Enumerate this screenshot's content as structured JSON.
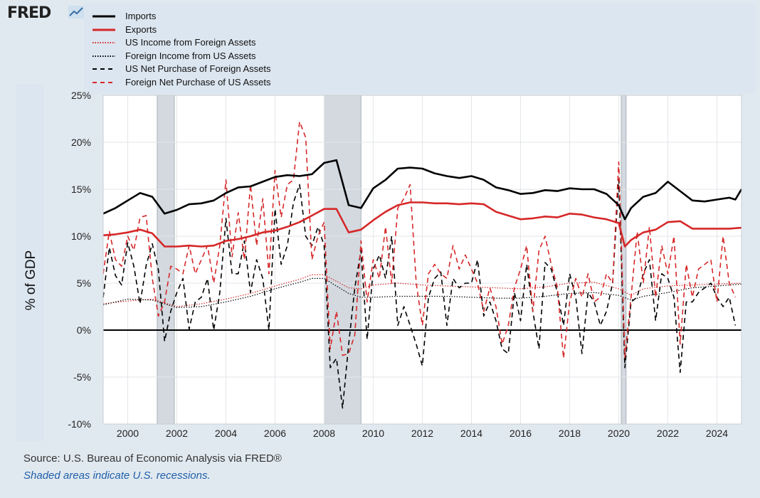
{
  "brand": {
    "logo_text": "FRED",
    "logo_icon": "fred-chart-logo-icon"
  },
  "legend": [
    {
      "label": "Imports",
      "color": "#000000",
      "style": "solid-thick"
    },
    {
      "label": "Exports",
      "color": "#d62728",
      "style": "solid-thick"
    },
    {
      "label": "US Income from Foreign Assets",
      "color": "#d62728",
      "style": "dotted"
    },
    {
      "label": "Foreign Income from US Assets",
      "color": "#000000",
      "style": "dotted"
    },
    {
      "label": "US Net Purchase of Foreign Assets",
      "color": "#000000",
      "style": "dashed"
    },
    {
      "label": "Foreign Net Purchase of US Assets",
      "color": "#d62728",
      "style": "dashed"
    }
  ],
  "footer": {
    "source": "Source: U.S. Bureau of Economic Analysis via FRED®",
    "note": "Shaded areas indicate U.S. recessions."
  },
  "chart_data": {
    "type": "line",
    "title": "",
    "ylabel": "% of GDP",
    "xlabel": "",
    "xlim": [
      1999.0,
      2025.0
    ],
    "ylim": [
      -10,
      25
    ],
    "x_ticks": [
      "2000",
      "2002",
      "2004",
      "2006",
      "2008",
      "2010",
      "2012",
      "2014",
      "2016",
      "2018",
      "2020",
      "2022",
      "2024"
    ],
    "y_ticks": [
      "25%",
      "20%",
      "15%",
      "10%",
      "5%",
      "0%",
      "-5%",
      "-10%"
    ],
    "grid": true,
    "zero_line": true,
    "recessions": [
      [
        2001.2,
        2001.9
      ],
      [
        2008.0,
        2009.5
      ],
      [
        2020.1,
        2020.3
      ]
    ],
    "series": [
      {
        "name": "Imports",
        "color": "#000000",
        "style": "solid-thick",
        "x": [
          1999.0,
          1999.5,
          2000.0,
          2000.5,
          2001.0,
          2001.5,
          2002.0,
          2002.5,
          2003.0,
          2003.5,
          2004.0,
          2004.5,
          2005.0,
          2005.5,
          2006.0,
          2006.5,
          2007.0,
          2007.5,
          2008.0,
          2008.5,
          2009.0,
          2009.5,
          2010.0,
          2010.5,
          2011.0,
          2011.5,
          2012.0,
          2012.5,
          2013.0,
          2013.5,
          2014.0,
          2014.5,
          2015.0,
          2015.5,
          2016.0,
          2016.5,
          2017.0,
          2017.5,
          2018.0,
          2018.5,
          2019.0,
          2019.5,
          2020.0,
          2020.25,
          2020.5,
          2021.0,
          2021.5,
          2022.0,
          2022.5,
          2023.0,
          2023.5,
          2024.0,
          2024.5,
          2024.75,
          2025.0
        ],
        "values": [
          12.4,
          13.0,
          13.8,
          14.6,
          14.2,
          12.4,
          12.8,
          13.4,
          13.5,
          13.8,
          14.6,
          15.2,
          15.3,
          15.8,
          16.3,
          16.5,
          16.4,
          16.6,
          17.8,
          18.1,
          13.3,
          13.0,
          15.1,
          16.0,
          17.2,
          17.3,
          17.2,
          16.7,
          16.4,
          16.2,
          16.4,
          16.0,
          15.2,
          14.9,
          14.5,
          14.6,
          14.9,
          14.8,
          15.1,
          15.0,
          15.0,
          14.5,
          13.3,
          11.8,
          13.0,
          14.2,
          14.6,
          15.8,
          14.8,
          13.8,
          13.7,
          13.9,
          14.1,
          13.9,
          15.0
        ]
      },
      {
        "name": "Exports",
        "color": "#d62728",
        "style": "solid-thick",
        "x": [
          1999.0,
          1999.5,
          2000.0,
          2000.5,
          2001.0,
          2001.5,
          2002.0,
          2002.5,
          2003.0,
          2003.5,
          2004.0,
          2004.5,
          2005.0,
          2005.5,
          2006.0,
          2006.5,
          2007.0,
          2007.5,
          2008.0,
          2008.5,
          2009.0,
          2009.5,
          2010.0,
          2010.5,
          2011.0,
          2011.5,
          2012.0,
          2012.5,
          2013.0,
          2013.5,
          2014.0,
          2014.5,
          2015.0,
          2015.5,
          2016.0,
          2016.5,
          2017.0,
          2017.5,
          2018.0,
          2018.5,
          2019.0,
          2019.5,
          2020.0,
          2020.25,
          2020.5,
          2021.0,
          2021.5,
          2022.0,
          2022.5,
          2023.0,
          2023.5,
          2024.0,
          2024.5,
          2025.0
        ],
        "values": [
          10.1,
          10.2,
          10.4,
          10.7,
          10.3,
          8.9,
          8.9,
          9.0,
          8.9,
          9.0,
          9.5,
          9.7,
          10.0,
          10.4,
          10.6,
          11.0,
          11.5,
          12.2,
          12.9,
          12.9,
          10.4,
          10.7,
          11.7,
          12.6,
          13.3,
          13.6,
          13.6,
          13.5,
          13.5,
          13.4,
          13.5,
          13.4,
          12.6,
          12.2,
          11.8,
          11.9,
          12.1,
          12.0,
          12.4,
          12.3,
          12.0,
          11.8,
          11.4,
          8.9,
          9.6,
          10.4,
          10.7,
          11.5,
          11.6,
          10.8,
          10.8,
          10.8,
          10.8,
          10.9
        ]
      },
      {
        "name": "US Income from Foreign Assets",
        "color": "#d62728",
        "style": "dotted",
        "x": [
          1999.0,
          2000.0,
          2001.0,
          2002.0,
          2003.0,
          2004.0,
          2005.0,
          2006.0,
          2007.0,
          2007.5,
          2008.0,
          2008.5,
          2009.0,
          2009.5,
          2010.0,
          2011.0,
          2012.0,
          2013.0,
          2014.0,
          2015.0,
          2016.0,
          2017.0,
          2018.0,
          2019.0,
          2020.0,
          2020.5,
          2021.0,
          2022.0,
          2023.0,
          2024.0,
          2025.0
        ],
        "values": [
          2.8,
          3.1,
          3.3,
          2.5,
          2.8,
          3.3,
          3.9,
          4.7,
          5.4,
          5.9,
          5.9,
          5.2,
          4.5,
          4.4,
          4.8,
          5.0,
          4.8,
          4.7,
          4.6,
          4.5,
          4.4,
          4.6,
          5.0,
          5.1,
          4.4,
          3.7,
          4.4,
          4.7,
          4.8,
          4.9,
          5.0
        ]
      },
      {
        "name": "Foreign Income from US Assets",
        "color": "#000000",
        "style": "dotted",
        "x": [
          1999.0,
          2000.0,
          2001.0,
          2002.0,
          2003.0,
          2004.0,
          2005.0,
          2006.0,
          2007.0,
          2007.5,
          2008.0,
          2008.5,
          2009.0,
          2009.5,
          2010.0,
          2011.0,
          2012.0,
          2013.0,
          2014.0,
          2015.0,
          2016.0,
          2017.0,
          2018.0,
          2019.0,
          2020.0,
          2020.5,
          2021.0,
          2022.0,
          2023.0,
          2024.0,
          2025.0
        ],
        "values": [
          2.7,
          3.3,
          3.2,
          2.4,
          2.5,
          3.0,
          3.6,
          4.4,
          5.1,
          5.5,
          5.5,
          4.7,
          3.9,
          3.5,
          3.5,
          3.6,
          3.6,
          3.6,
          3.5,
          3.4,
          3.4,
          3.6,
          3.9,
          4.0,
          3.7,
          3.2,
          3.6,
          4.0,
          4.5,
          4.7,
          4.9
        ]
      },
      {
        "name": "US Net Purchase of Foreign Assets",
        "color": "#000000",
        "style": "dashed",
        "x": [
          1999.0,
          1999.25,
          1999.5,
          1999.75,
          2000.0,
          2000.25,
          2000.5,
          2000.75,
          2001.0,
          2001.25,
          2001.5,
          2001.75,
          2002.0,
          2002.25,
          2002.5,
          2002.75,
          2003.0,
          2003.25,
          2003.5,
          2003.75,
          2004.0,
          2004.25,
          2004.5,
          2004.75,
          2005.0,
          2005.25,
          2005.5,
          2005.75,
          2006.0,
          2006.25,
          2006.5,
          2006.75,
          2007.0,
          2007.25,
          2007.5,
          2007.75,
          2008.0,
          2008.25,
          2008.5,
          2008.75,
          2009.0,
          2009.25,
          2009.5,
          2009.75,
          2010.0,
          2010.25,
          2010.5,
          2010.75,
          2011.0,
          2011.25,
          2011.5,
          2011.75,
          2012.0,
          2012.25,
          2012.5,
          2012.75,
          2013.0,
          2013.25,
          2013.5,
          2013.75,
          2014.0,
          2014.25,
          2014.5,
          2014.75,
          2015.0,
          2015.25,
          2015.5,
          2015.75,
          2016.0,
          2016.25,
          2016.5,
          2016.75,
          2017.0,
          2017.25,
          2017.5,
          2017.75,
          2018.0,
          2018.25,
          2018.5,
          2018.75,
          2019.0,
          2019.25,
          2019.5,
          2019.75,
          2020.0,
          2020.25,
          2020.5,
          2020.75,
          2021.0,
          2021.25,
          2021.5,
          2021.75,
          2022.0,
          2022.25,
          2022.5,
          2022.75,
          2023.0,
          2023.25,
          2023.5,
          2023.75,
          2024.0,
          2024.25,
          2024.5,
          2024.75
        ],
        "values": [
          3.5,
          8.8,
          5.8,
          4.8,
          9.3,
          6.8,
          2.8,
          6.9,
          9.2,
          6.4,
          -1.2,
          2.0,
          4.0,
          5.5,
          0.1,
          3.0,
          3.5,
          5.5,
          0.0,
          4.0,
          11.9,
          6.0,
          6.0,
          9.5,
          4.0,
          7.5,
          5.5,
          0.0,
          12.9,
          7.0,
          9.0,
          13.6,
          15.5,
          10.0,
          9.0,
          11.0,
          9.0,
          -4.0,
          -3.0,
          -8.3,
          -1.5,
          4.5,
          8.5,
          -1.0,
          6.5,
          8.0,
          5.5,
          10.0,
          0.5,
          2.5,
          0.5,
          -1.5,
          -3.8,
          3.5,
          5.5,
          6.2,
          0.5,
          5.5,
          4.5,
          5.0,
          5.0,
          7.5,
          1.5,
          3.0,
          1.0,
          -2.0,
          -2.5,
          4.0,
          1.0,
          7.0,
          2.0,
          -2.0,
          7.2,
          6.5,
          4.0,
          0.5,
          6.0,
          3.5,
          -2.5,
          4.0,
          3.0,
          0.5,
          2.0,
          5.0,
          16.0,
          -4.0,
          3.0,
          3.5,
          6.0,
          7.5,
          1.0,
          6.0,
          5.5,
          3.5,
          -4.5,
          3.0,
          3.0,
          4.0,
          4.5,
          5.0,
          3.5,
          2.5,
          3.5,
          0.5
        ]
      },
      {
        "name": "Foreign Net Purchase of US Assets",
        "color": "#d62728",
        "style": "dashed",
        "x": [
          1999.0,
          1999.25,
          1999.5,
          1999.75,
          2000.0,
          2000.25,
          2000.5,
          2000.75,
          2001.0,
          2001.25,
          2001.5,
          2001.75,
          2002.0,
          2002.25,
          2002.5,
          2002.75,
          2003.0,
          2003.25,
          2003.5,
          2003.75,
          2004.0,
          2004.25,
          2004.5,
          2004.75,
          2005.0,
          2005.25,
          2005.5,
          2005.75,
          2006.0,
          2006.25,
          2006.5,
          2006.75,
          2007.0,
          2007.25,
          2007.5,
          2007.75,
          2008.0,
          2008.25,
          2008.5,
          2008.75,
          2009.0,
          2009.25,
          2009.5,
          2009.75,
          2010.0,
          2010.25,
          2010.5,
          2010.75,
          2011.0,
          2011.25,
          2011.5,
          2011.75,
          2012.0,
          2012.25,
          2012.5,
          2012.75,
          2013.0,
          2013.25,
          2013.5,
          2013.75,
          2014.0,
          2014.25,
          2014.5,
          2014.75,
          2015.0,
          2015.25,
          2015.5,
          2015.75,
          2016.0,
          2016.25,
          2016.5,
          2016.75,
          2017.0,
          2017.25,
          2017.5,
          2017.75,
          2018.0,
          2018.25,
          2018.5,
          2018.75,
          2019.0,
          2019.25,
          2019.5,
          2019.75,
          2020.0,
          2020.25,
          2020.5,
          2020.75,
          2021.0,
          2021.25,
          2021.5,
          2021.75,
          2022.0,
          2022.25,
          2022.5,
          2022.75,
          2023.0,
          2023.25,
          2023.5,
          2023.75,
          2024.0,
          2024.25,
          2024.5,
          2024.75
        ],
        "values": [
          6.0,
          10.5,
          7.5,
          6.8,
          10.0,
          8.5,
          12.0,
          12.2,
          5.5,
          1.5,
          3.0,
          6.8,
          6.5,
          6.0,
          9.0,
          6.0,
          7.5,
          9.0,
          5.0,
          9.0,
          16.0,
          7.8,
          12.5,
          7.5,
          15.5,
          9.0,
          14.0,
          6.0,
          17.0,
          12.0,
          15.5,
          16.0,
          22.2,
          20.5,
          7.5,
          10.0,
          11.5,
          -2.0,
          2.0,
          -2.7,
          -2.5,
          -0.5,
          9.5,
          3.0,
          7.5,
          5.5,
          11.0,
          5.0,
          13.0,
          14.0,
          15.5,
          5.0,
          0.5,
          6.0,
          7.0,
          6.0,
          5.5,
          9.0,
          6.5,
          8.0,
          6.5,
          5.0,
          2.0,
          4.5,
          2.5,
          -1.5,
          0.5,
          4.5,
          6.5,
          9.0,
          2.0,
          8.5,
          10.0,
          7.0,
          4.5,
          -3.0,
          3.0,
          5.5,
          3.5,
          6.0,
          3.0,
          3.5,
          6.0,
          5.0,
          17.9,
          -2.9,
          3.5,
          10.5,
          5.0,
          11.0,
          3.5,
          9.0,
          6.0,
          10.0,
          -1.5,
          7.0,
          3.5,
          6.5,
          7.0,
          7.5,
          3.0,
          10.0,
          5.0,
          3.5
        ]
      }
    ]
  }
}
